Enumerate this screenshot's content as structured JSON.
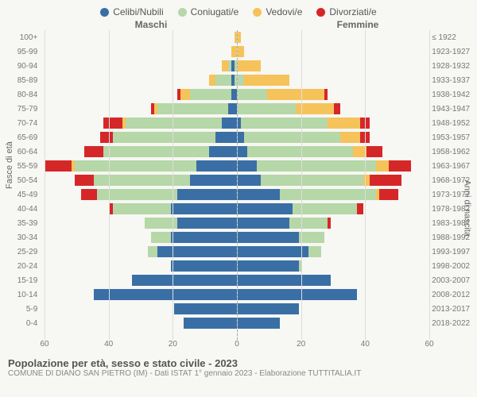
{
  "legend": [
    {
      "label": "Celibi/Nubili",
      "color": "#3a6fa6"
    },
    {
      "label": "Coniugati/e",
      "color": "#b6d7a8"
    },
    {
      "label": "Vedovi/e",
      "color": "#f6c35a"
    },
    {
      "label": "Divorziati/e",
      "color": "#d62728"
    }
  ],
  "headers": {
    "left": "Maschi",
    "right": "Femmine",
    "y_left": "Fasce di età",
    "y_right": "Anni di nascita"
  },
  "x_max": 60,
  "x_ticks": [
    60,
    40,
    20,
    0,
    20,
    40,
    60
  ],
  "rows": [
    {
      "age": "100+",
      "year": "≤ 1922",
      "m": [
        0,
        0,
        0,
        0
      ],
      "f": [
        0,
        0,
        2,
        0
      ]
    },
    {
      "age": "95-99",
      "year": "1923-1927",
      "m": [
        0,
        0,
        1,
        0
      ],
      "f": [
        0,
        0,
        3,
        0
      ]
    },
    {
      "age": "90-94",
      "year": "1928-1932",
      "m": [
        1,
        1,
        2,
        0
      ],
      "f": [
        0,
        1,
        7,
        0
      ]
    },
    {
      "age": "85-89",
      "year": "1933-1937",
      "m": [
        1,
        5,
        2,
        0
      ],
      "f": [
        0,
        3,
        14,
        0
      ]
    },
    {
      "age": "80-84",
      "year": "1938-1942",
      "m": [
        1,
        13,
        3,
        1
      ],
      "f": [
        1,
        9,
        18,
        1
      ]
    },
    {
      "age": "75-79",
      "year": "1943-1947",
      "m": [
        2,
        22,
        1,
        1
      ],
      "f": [
        1,
        18,
        12,
        2
      ]
    },
    {
      "age": "70-74",
      "year": "1948-1952",
      "m": [
        4,
        30,
        1,
        6
      ],
      "f": [
        2,
        27,
        10,
        3
      ]
    },
    {
      "age": "65-69",
      "year": "1953-1957",
      "m": [
        6,
        32,
        0,
        4
      ],
      "f": [
        3,
        30,
        6,
        3
      ]
    },
    {
      "age": "60-64",
      "year": "1958-1962",
      "m": [
        8,
        33,
        0,
        6
      ],
      "f": [
        4,
        33,
        4,
        5
      ]
    },
    {
      "age": "55-59",
      "year": "1963-1967",
      "m": [
        12,
        38,
        1,
        8
      ],
      "f": [
        7,
        37,
        4,
        7
      ]
    },
    {
      "age": "50-54",
      "year": "1968-1972",
      "m": [
        14,
        30,
        0,
        6
      ],
      "f": [
        8,
        32,
        2,
        10
      ]
    },
    {
      "age": "45-49",
      "year": "1973-1977",
      "m": [
        18,
        25,
        0,
        5
      ],
      "f": [
        14,
        30,
        1,
        6
      ]
    },
    {
      "age": "40-44",
      "year": "1978-1982",
      "m": [
        20,
        18,
        0,
        1
      ],
      "f": [
        18,
        20,
        0,
        2
      ]
    },
    {
      "age": "35-39",
      "year": "1983-1987",
      "m": [
        18,
        10,
        0,
        0
      ],
      "f": [
        17,
        12,
        0,
        1
      ]
    },
    {
      "age": "30-34",
      "year": "1988-1992",
      "m": [
        20,
        6,
        0,
        0
      ],
      "f": [
        20,
        8,
        0,
        0
      ]
    },
    {
      "age": "25-29",
      "year": "1993-1997",
      "m": [
        24,
        3,
        0,
        0
      ],
      "f": [
        23,
        4,
        0,
        0
      ]
    },
    {
      "age": "20-24",
      "year": "1998-2002",
      "m": [
        20,
        0,
        0,
        0
      ],
      "f": [
        20,
        1,
        0,
        0
      ]
    },
    {
      "age": "15-19",
      "year": "2003-2007",
      "m": [
        32,
        0,
        0,
        0
      ],
      "f": [
        30,
        0,
        0,
        0
      ]
    },
    {
      "age": "10-14",
      "year": "2008-2012",
      "m": [
        44,
        0,
        0,
        0
      ],
      "f": [
        38,
        0,
        0,
        0
      ]
    },
    {
      "age": "5-9",
      "year": "2013-2017",
      "m": [
        19,
        0,
        0,
        0
      ],
      "f": [
        20,
        0,
        0,
        0
      ]
    },
    {
      "age": "0-4",
      "year": "2018-2022",
      "m": [
        16,
        0,
        0,
        0
      ],
      "f": [
        14,
        0,
        0,
        0
      ]
    }
  ],
  "footer": {
    "title": "Popolazione per età, sesso e stato civile - 2023",
    "sub": "COMUNE DI DIANO SAN PIETRO (IM) - Dati ISTAT 1° gennaio 2023 - Elaborazione TUTTITALIA.IT"
  },
  "background_color": "#f7f7f4",
  "grid_color": "#dddddd"
}
